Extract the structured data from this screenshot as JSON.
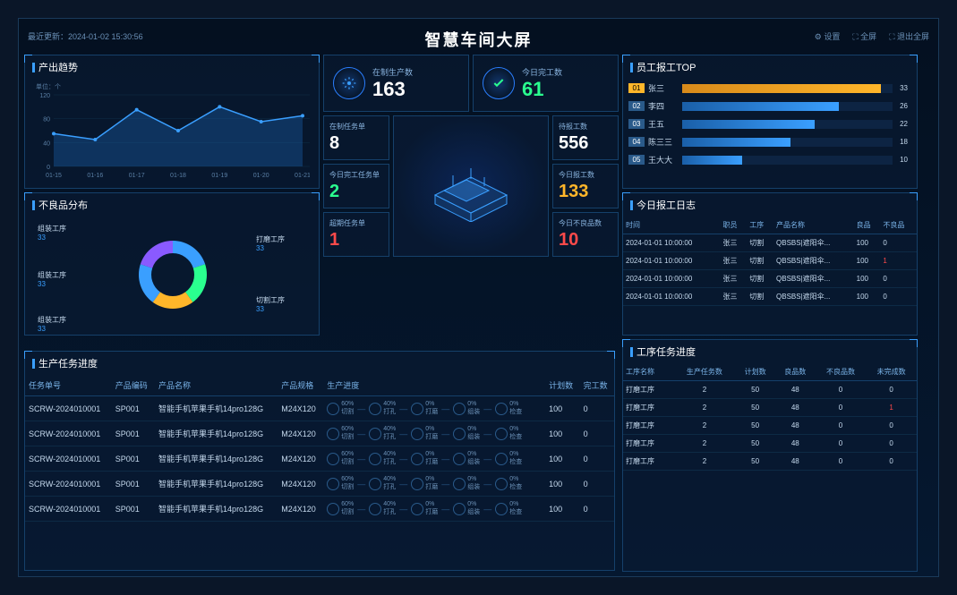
{
  "header": {
    "update_prefix": "最近更新：",
    "timestamp": "2024-01-02 15:30:56",
    "title": "智慧车间大屏",
    "actions": {
      "settings": "⚙ 设置",
      "fullscreen": "⛶ 全屏",
      "exit_fs": "⛶ 退出全屏"
    }
  },
  "colors": {
    "panel_border": "#15406a",
    "accent": "#3a9fff",
    "bg": "#041020",
    "white": "#ffffff",
    "green": "#2aff8f",
    "red": "#ff4a4a",
    "yellow": "#ffb62a",
    "line_area": "#1a4a7a",
    "grid": "#10304a"
  },
  "line_chart": {
    "title": "产出趋势",
    "y_unit": "单位：个",
    "y_ticks": [
      0,
      40,
      80,
      120
    ],
    "x_labels": [
      "01-15",
      "01-16",
      "01-17",
      "01-18",
      "01-19",
      "01-20",
      "01-21"
    ],
    "values": [
      55,
      45,
      95,
      60,
      100,
      75,
      85
    ]
  },
  "donut": {
    "title": "不良品分布",
    "segments": [
      {
        "name": "组装工序",
        "value": 33,
        "color": "#3a9fff"
      },
      {
        "name": "组装工序",
        "value": 33,
        "color": "#2aff8f"
      },
      {
        "name": "组装工序",
        "value": 33,
        "color": "#ffb62a"
      },
      {
        "name": "打磨工序",
        "value": 33,
        "color": "#3a9fff"
      },
      {
        "name": "切割工序",
        "value": 33,
        "color": "#8a5aff"
      }
    ]
  },
  "prod_table": {
    "title": "生产任务进度",
    "columns": [
      "任务单号",
      "产品编码",
      "产品名称",
      "产品规格",
      "生产进度",
      "计划数",
      "完工数"
    ],
    "rows": [
      {
        "no": "SCRW-2024010001",
        "code": "SP001",
        "name": "智能手机苹果手机14pro128G",
        "spec": "M24X120",
        "plan": "100",
        "done": "0"
      },
      {
        "no": "SCRW-2024010001",
        "code": "SP001",
        "name": "智能手机苹果手机14pro128G",
        "spec": "M24X120",
        "plan": "100",
        "done": "0"
      },
      {
        "no": "SCRW-2024010001",
        "code": "SP001",
        "name": "智能手机苹果手机14pro128G",
        "spec": "M24X120",
        "plan": "100",
        "done": "0"
      },
      {
        "no": "SCRW-2024010001",
        "code": "SP001",
        "name": "智能手机苹果手机14pro128G",
        "spec": "M24X120",
        "plan": "100",
        "done": "0"
      },
      {
        "no": "SCRW-2024010001",
        "code": "SP001",
        "name": "智能手机苹果手机14pro128G",
        "spec": "M24X120",
        "plan": "100",
        "done": "0"
      }
    ],
    "prog_steps": [
      {
        "n": "切割",
        "p": "60%"
      },
      {
        "n": "打孔",
        "p": "40%"
      },
      {
        "n": "打磨",
        "p": "0%"
      },
      {
        "n": "组装",
        "p": "0%"
      },
      {
        "n": "检查",
        "p": "0%"
      }
    ]
  },
  "center_stats": {
    "a": {
      "label": "在制生产数",
      "value": "163",
      "colorClass": "cwhite"
    },
    "b": {
      "label": "今日完工数",
      "value": "61",
      "colorClass": "cgreen"
    },
    "left": [
      {
        "label": "在制任务单",
        "value": "8",
        "colorClass": "cwhite"
      },
      {
        "label": "今日完工任务单",
        "value": "2",
        "colorClass": "cgreen"
      },
      {
        "label": "超期任务单",
        "value": "1",
        "colorClass": "cred"
      }
    ],
    "right": [
      {
        "label": "待报工数",
        "value": "556",
        "colorClass": "cwhite"
      },
      {
        "label": "今日报工数",
        "value": "133",
        "colorClass": "cyellow"
      },
      {
        "label": "今日不良品数",
        "value": "10",
        "colorClass": "cred"
      }
    ]
  },
  "bar_chart": {
    "title": "员工报工TOP",
    "max": 35,
    "bars": [
      {
        "rank": "01",
        "name": "张三",
        "value": 33,
        "first": true
      },
      {
        "rank": "02",
        "name": "李四",
        "value": 26
      },
      {
        "rank": "03",
        "name": "王五",
        "value": 22
      },
      {
        "rank": "04",
        "name": "陈三三",
        "value": 18
      },
      {
        "rank": "05",
        "name": "王大大",
        "value": 10
      }
    ]
  },
  "log": {
    "title": "今日报工日志",
    "columns": [
      "时间",
      "职员",
      "工序",
      "产品名称",
      "良品",
      "不良品"
    ],
    "rows": [
      {
        "t": "2024-01-01 10:00:00",
        "p": "张三",
        "pr": "切割",
        "pn": "QBSBS|遮阳伞...",
        "g": "100",
        "b": "0"
      },
      {
        "t": "2024-01-01 10:00:00",
        "p": "张三",
        "pr": "切割",
        "pn": "QBSBS|遮阳伞...",
        "g": "100",
        "b": "1",
        "bred": true
      },
      {
        "t": "2024-01-01 10:00:00",
        "p": "张三",
        "pr": "切割",
        "pn": "QBSBS|遮阳伞...",
        "g": "100",
        "b": "0"
      },
      {
        "t": "2024-01-01 10:00:00",
        "p": "张三",
        "pr": "切割",
        "pn": "QBSBS|遮阳伞...",
        "g": "100",
        "b": "0"
      }
    ]
  },
  "proc": {
    "title": "工序任务进度",
    "columns": [
      "工序名称",
      "生产任务数",
      "计划数",
      "良品数",
      "不良品数",
      "未完成数"
    ],
    "rows": [
      {
        "n": "打磨工序",
        "t": "2",
        "p": "50",
        "g": "48",
        "b": "0",
        "u": "0"
      },
      {
        "n": "打磨工序",
        "t": "2",
        "p": "50",
        "g": "48",
        "b": "0",
        "u": "1",
        "ured": true
      },
      {
        "n": "打磨工序",
        "t": "2",
        "p": "50",
        "g": "48",
        "b": "0",
        "u": "0"
      },
      {
        "n": "打磨工序",
        "t": "2",
        "p": "50",
        "g": "48",
        "b": "0",
        "u": "0"
      },
      {
        "n": "打磨工序",
        "t": "2",
        "p": "50",
        "g": "48",
        "b": "0",
        "u": "0"
      }
    ]
  }
}
